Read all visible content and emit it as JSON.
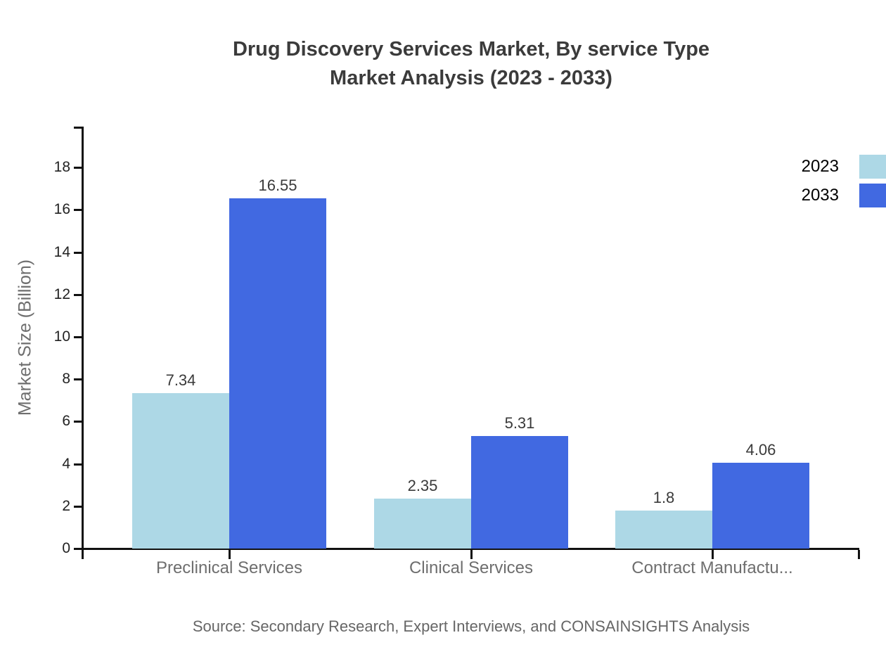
{
  "title": {
    "line1": "Drug Discovery Services Market, By service Type",
    "line2": "Market Analysis (2023 - 2033)"
  },
  "source": "Source: Secondary Research, Expert Interviews, and CONSAINSIGHTS Analysis",
  "chart_data": {
    "type": "bar",
    "title": "Drug Discovery Services Market, By service Type Market Analysis (2023 - 2033)",
    "categories": [
      "Preclinical Services",
      "Clinical Services",
      "Contract Manufactu..."
    ],
    "series": [
      {
        "name": "2023",
        "color": "#ADD8E6",
        "values": [
          7.34,
          2.35,
          1.8
        ]
      },
      {
        "name": "2033",
        "color": "#4169E1",
        "values": [
          16.55,
          5.31,
          4.06
        ]
      }
    ],
    "value_labels": [
      [
        "7.34",
        "2.35",
        "1.8"
      ],
      [
        "16.55",
        "5.31",
        "4.06"
      ]
    ],
    "xlabel": "",
    "ylabel": "Market Size (Billion)",
    "ylim": [
      0,
      20
    ],
    "yticks": [
      0,
      2,
      4,
      6,
      8,
      10,
      12,
      14,
      16,
      18
    ],
    "grid": false,
    "legend_position": "top-right",
    "axis_color": "#111111"
  }
}
